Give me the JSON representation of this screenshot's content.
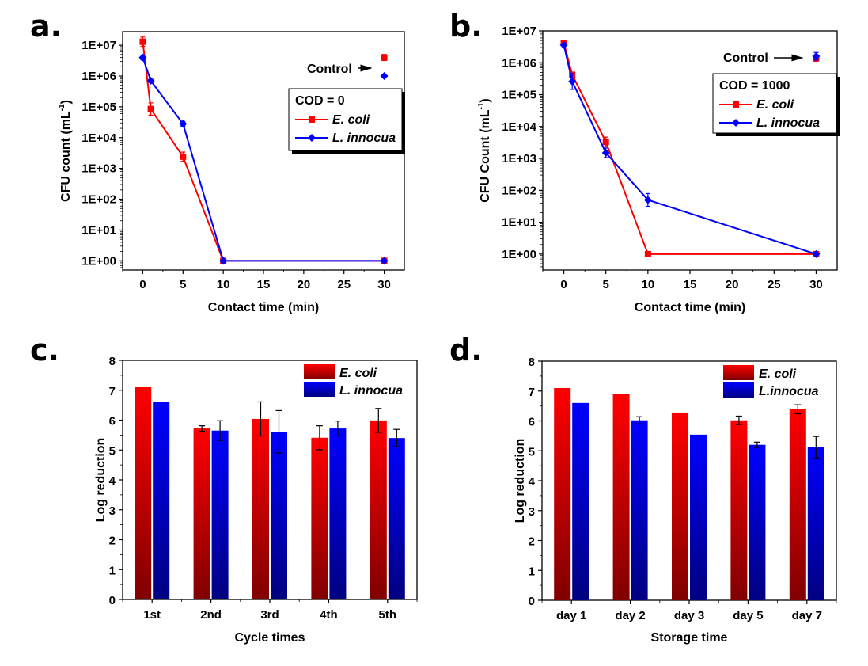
{
  "chart_data": [
    {
      "panel": "a.",
      "type": "line",
      "yscale": "log",
      "xlabel": "Contact time (min)",
      "ylabel": "CFU count (mL",
      "ylabel_sup": "-1",
      "xlim": [
        -2.5,
        32.5
      ],
      "ylim_log10": [
        -0.3,
        7.44
      ],
      "xticks": [
        0,
        5,
        10,
        15,
        20,
        25,
        30
      ],
      "yticks": [
        "1E+00",
        "1E+01",
        "1E+02",
        "1E+03",
        "1E+04",
        "1E+05",
        "1E+06",
        "1E+07"
      ],
      "legend_title": "COD = 0",
      "control_label": "Control",
      "series": [
        {
          "name": "E. coli",
          "color": "#ff0000",
          "marker": "square",
          "x": [
            0,
            1,
            5,
            10,
            30
          ],
          "y": [
            13000000,
            85000,
            2400,
            1,
            1
          ],
          "err_log": [
            0.15,
            0.2,
            0.15,
            0,
            0
          ],
          "control": 4000000,
          "control_err_log": 0.1
        },
        {
          "name": "L. innocua",
          "color": "#0000ff",
          "marker": "diamond",
          "x": [
            0,
            1,
            5,
            10,
            30
          ],
          "y": [
            4000000,
            700000,
            28000,
            1,
            1
          ],
          "err_log": [
            0.08,
            0.05,
            0.08,
            0,
            0
          ],
          "control": 1000000,
          "control_err_log": 0
        }
      ]
    },
    {
      "panel": "b.",
      "type": "line",
      "yscale": "log",
      "xlabel": "Contact time (min)",
      "ylabel": "CFU Count (mL",
      "ylabel_sup": "-1",
      "xlim": [
        -2.5,
        32.5
      ],
      "ylim_log10": [
        -0.5,
        7.0
      ],
      "xticks": [
        0,
        5,
        10,
        15,
        20,
        25,
        30
      ],
      "yticks": [
        "1E+00",
        "1E+01",
        "1E+02",
        "1E+03",
        "1E+04",
        "1E+05",
        "1E+06",
        "1E+07"
      ],
      "legend_title": "COD = 1000",
      "control_label": "Control",
      "series": [
        {
          "name": "E. coli",
          "color": "#ff0000",
          "marker": "square",
          "x": [
            0,
            1,
            5,
            10,
            30
          ],
          "y": [
            4200000,
            420000,
            3300,
            1,
            1
          ],
          "err_log": [
            0.05,
            0.08,
            0.15,
            0,
            0
          ],
          "control": 1400000,
          "control_err_log": 0.1
        },
        {
          "name": "L. innocua",
          "color": "#0000ff",
          "marker": "diamond",
          "x": [
            0,
            1,
            5,
            10,
            30
          ],
          "y": [
            3600000,
            260000,
            1500,
            50,
            1
          ],
          "err_log": [
            0.05,
            0.25,
            0.15,
            0.2,
            0
          ],
          "control": 1600000,
          "control_err_log": 0.12
        }
      ]
    },
    {
      "panel": "c.",
      "type": "bar",
      "xlabel": "Cycle times",
      "ylabel": "Log reduction",
      "ylim": [
        0,
        8
      ],
      "yticks": [
        0,
        1,
        2,
        3,
        4,
        5,
        6,
        7,
        8
      ],
      "categories": [
        "1st",
        "2nd",
        "3rd",
        "4th",
        "5th"
      ],
      "legend_position": "top-right",
      "series": [
        {
          "name": "E. coli",
          "color_top": "#ff0000",
          "color_bottom": "#800000",
          "values": [
            7.1,
            5.72,
            6.04,
            5.41,
            5.99
          ],
          "errors": [
            0,
            0.09,
            0.57,
            0.4,
            0.4
          ]
        },
        {
          "name": "L. innocua",
          "color_top": "#0000ff",
          "color_bottom": "#000080",
          "values": [
            6.6,
            5.65,
            5.61,
            5.72,
            5.4
          ],
          "errors": [
            0,
            0.33,
            0.71,
            0.25,
            0.29
          ]
        }
      ]
    },
    {
      "panel": "d.",
      "type": "bar",
      "xlabel": "Storage time",
      "ylabel": "Log reduction",
      "ylim": [
        0,
        8
      ],
      "yticks": [
        0,
        1,
        2,
        3,
        4,
        5,
        6,
        7,
        8
      ],
      "categories": [
        "day 1",
        "day 2",
        "day 3",
        "day 5",
        "day 7"
      ],
      "legend_position": "top-right",
      "series": [
        {
          "name": "E. coli",
          "color_top": "#ff0000",
          "color_bottom": "#800000",
          "values": [
            7.1,
            6.9,
            6.28,
            6.02,
            6.39
          ],
          "errors": [
            0,
            0,
            0,
            0.14,
            0.15
          ]
        },
        {
          "name": "L.innocua",
          "color_top": "#0000ff",
          "color_bottom": "#000080",
          "values": [
            6.6,
            6.02,
            5.54,
            5.2,
            5.12
          ],
          "errors": [
            0,
            0.12,
            0,
            0.09,
            0.36
          ]
        }
      ]
    }
  ]
}
